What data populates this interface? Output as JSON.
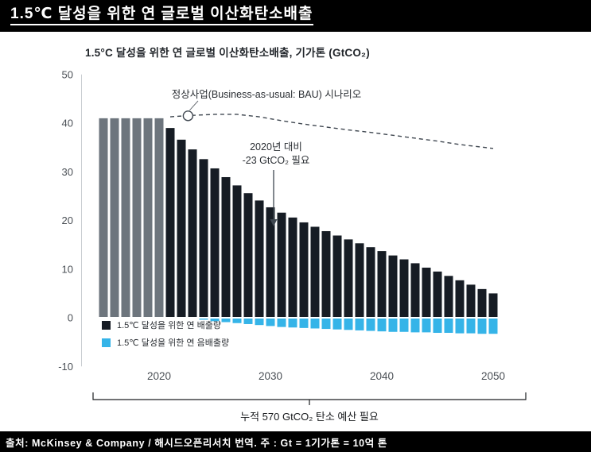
{
  "header": {
    "title": "1.5℃ 달성을 위한 연 글로벌 이산화탄소배출"
  },
  "footer": {
    "text": "출처: McKinsey & Company / 해시드오픈리서치 번역. 주 : Gt = 1기가톤 = 10억 톤"
  },
  "chart_data": {
    "type": "bar",
    "title": "1.5°C 달성을 위한 연 글로벌 이산화탄소배출, 기가톤 (GtCO₂)",
    "ylim": [
      -10,
      50
    ],
    "yticks": [
      -10,
      0,
      10,
      20,
      30,
      40,
      50
    ],
    "xticks": [
      2020,
      2030,
      2040,
      2050
    ],
    "grid": false,
    "legend_position": "inside-bottom-left",
    "legend": [
      {
        "label": "1.5℃ 달성을 위한 연 배출량",
        "color": "#161c24"
      },
      {
        "label": "1.5℃ 달성을 위한 연 음배출량",
        "color": "#35b4e8"
      }
    ],
    "colors": {
      "historical": "#6d757d",
      "emission": "#161c24",
      "negative": "#35b4e8",
      "bau": "#3f4750",
      "axis": "#c9cdd1",
      "tick_text": "#4a4f55"
    },
    "bars": {
      "columns": [
        "year",
        "emission",
        "negative",
        "historical"
      ],
      "rows": [
        [
          2015,
          41,
          0,
          1
        ],
        [
          2016,
          41,
          0,
          1
        ],
        [
          2017,
          41,
          0,
          1
        ],
        [
          2018,
          41,
          0,
          1
        ],
        [
          2019,
          41,
          0,
          1
        ],
        [
          2020,
          41,
          0,
          1
        ],
        [
          2021,
          39,
          0,
          0
        ],
        [
          2022,
          36.6,
          0,
          0
        ],
        [
          2023,
          34.6,
          0,
          0
        ],
        [
          2024,
          32.6,
          -0.4,
          0
        ],
        [
          2025,
          30.7,
          -0.7,
          0
        ],
        [
          2026,
          28.9,
          -0.9,
          0
        ],
        [
          2027,
          27.2,
          -1.1,
          0
        ],
        [
          2028,
          25.6,
          -1.3,
          0
        ],
        [
          2029,
          24.1,
          -1.5,
          0
        ],
        [
          2030,
          22.7,
          -1.7,
          0
        ],
        [
          2031,
          21.6,
          -1.9,
          0
        ],
        [
          2032,
          20.6,
          -2.0,
          0
        ],
        [
          2033,
          19.6,
          -2.1,
          0
        ],
        [
          2034,
          18.7,
          -2.2,
          0
        ],
        [
          2035,
          17.8,
          -2.3,
          0
        ],
        [
          2036,
          16.9,
          -2.4,
          0
        ],
        [
          2037,
          16.1,
          -2.5,
          0
        ],
        [
          2038,
          15.3,
          -2.6,
          0
        ],
        [
          2039,
          14.5,
          -2.7,
          0
        ],
        [
          2040,
          13.7,
          -2.8,
          0
        ],
        [
          2041,
          12.8,
          -2.9,
          0
        ],
        [
          2042,
          12.0,
          -2.9,
          0
        ],
        [
          2043,
          11.2,
          -3.0,
          0
        ],
        [
          2044,
          10.3,
          -3.0,
          0
        ],
        [
          2045,
          9.5,
          -3.1,
          0
        ],
        [
          2046,
          8.6,
          -3.1,
          0
        ],
        [
          2047,
          7.7,
          -3.2,
          0
        ],
        [
          2048,
          6.8,
          -3.2,
          0
        ],
        [
          2049,
          5.9,
          -3.3,
          0
        ],
        [
          2050,
          5.0,
          -3.3,
          0
        ]
      ]
    },
    "bau_line": {
      "label": "정상사업(Business-as-usual: BAU) 시나리오",
      "marker": {
        "year": 2022.6,
        "value": 41.5
      },
      "points": [
        [
          2021,
          41.3
        ],
        [
          2023,
          41.6
        ],
        [
          2025,
          41.8
        ],
        [
          2027,
          41.8
        ],
        [
          2029,
          41.3
        ],
        [
          2031,
          40.5
        ],
        [
          2033,
          39.8
        ],
        [
          2035,
          39.2
        ],
        [
          2037,
          38.6
        ],
        [
          2039,
          38.1
        ],
        [
          2041,
          37.5
        ],
        [
          2043,
          36.9
        ],
        [
          2045,
          36.3
        ],
        [
          2047,
          35.6
        ],
        [
          2050,
          34.8
        ]
      ]
    },
    "annotations": {
      "delta_line1": "2020년 대비",
      "delta_line2": "-23 GtCO₂ 필요",
      "budget": "누적 570 GtCO₂ 탄소 예산 필요"
    }
  }
}
